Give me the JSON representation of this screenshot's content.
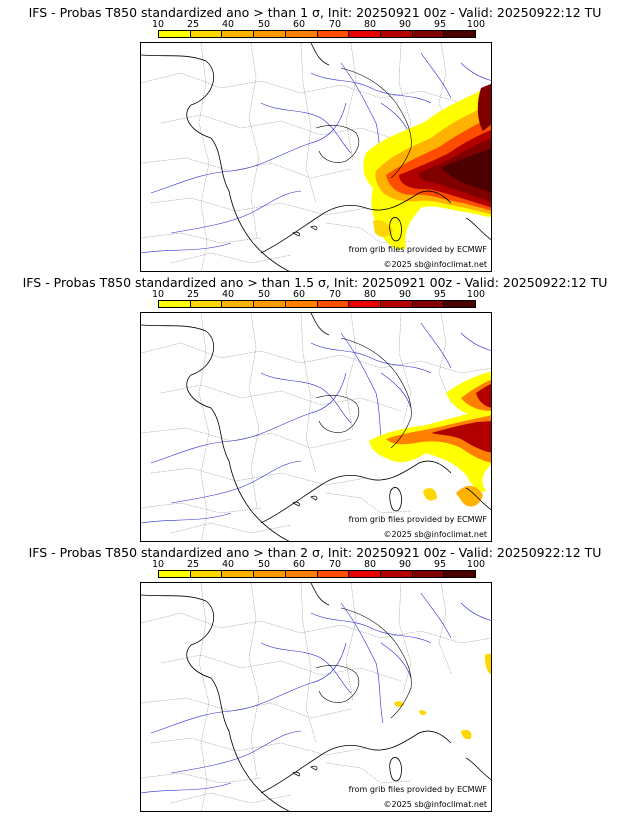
{
  "scale": {
    "labels": [
      "10",
      "25",
      "40",
      "50",
      "60",
      "70",
      "80",
      "90",
      "95",
      "100"
    ],
    "colors": [
      "#ffff00",
      "#ffd700",
      "#ffb300",
      "#ff9900",
      "#ff7f00",
      "#ff4d00",
      "#e60000",
      "#b20000",
      "#800000",
      "#4d0000"
    ]
  },
  "panels": [
    {
      "title": "IFS - Probas T850  standardized ano > than 1 σ, Init: 20250921 00z - Valid: 20250922:12 TU",
      "source": "from grib files provided by ECMWF",
      "copyright": "©2025 sb@infoclimat.net"
    },
    {
      "title": "IFS - Probas T850  standardized ano > than 1.5 σ, Init: 20250921 00z - Valid: 20250922:12 TU",
      "source": "from grib files provided by ECMWF",
      "copyright": "©2025 sb@infoclimat.net"
    },
    {
      "title": "IFS - Probas T850  standardized ano > than 2 σ, Init: 20250921 00z - Valid: 20250922:12 TU",
      "source": "from grib files provided by ECMWF",
      "copyright": "©2025 sb@infoclimat.net"
    }
  ]
}
